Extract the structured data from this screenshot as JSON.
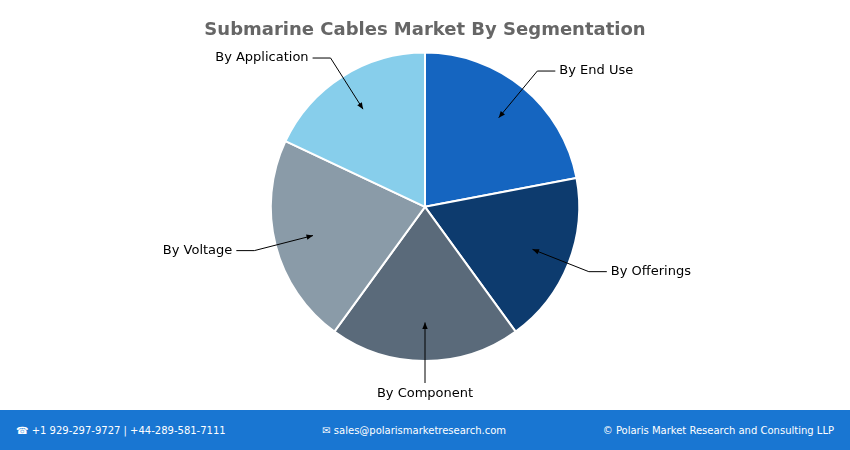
{
  "chart_data": {
    "type": "pie",
    "title": "Submarine Cables Market By Segmentation",
    "categories": [
      "By End Use",
      "By Offerings",
      "By Component",
      "By Voltage",
      "By Application"
    ],
    "values": [
      22,
      18,
      20,
      22,
      18
    ],
    "colors": [
      "#1565C0",
      "#0D3B6E",
      "#5A6A7A",
      "#8A9BA8",
      "#87CEEB"
    ],
    "annotations": [
      "☎ +1 929-297-9727 | +44-289-581-7111",
      "✉ sales@polarismarketresearch.com",
      "© Polaris Market Research and Consulting LLP"
    ]
  }
}
